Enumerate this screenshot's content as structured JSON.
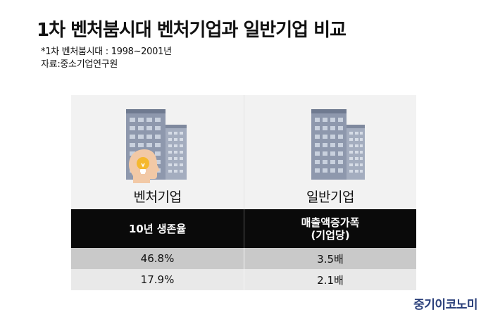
{
  "header": {
    "title": "1차 벤처붐시대 벤처기업과 일반기업 비교",
    "note_period": "*1차 벤처붐시대 : 1998~2001년",
    "note_source": "자료:중소기업연구원"
  },
  "panels": {
    "venture_label": "벤처기업",
    "general_label": "일반기업"
  },
  "table": {
    "headers": [
      "10년 생존율",
      "매출액증가폭",
      "(기업당)"
    ],
    "rows": [
      [
        "46.8%",
        "3.5배"
      ],
      [
        "17.9%",
        "2.1배"
      ]
    ]
  },
  "logo": {
    "text": "중기이코노미"
  },
  "icons": {
    "venture": [
      "office-building-icon",
      "head-lightbulb-icon"
    ],
    "general": [
      "office-building-icon"
    ]
  },
  "colors": {
    "header_bg": "#0a0a0a",
    "row1_bg": "#c9c9c9",
    "row2_bg": "#e9e9e9",
    "panel_bg": "#f2f2f2",
    "logo": "#2a3f7a",
    "lightbulb": "#f5b82e",
    "head": "#f2c9a6"
  }
}
